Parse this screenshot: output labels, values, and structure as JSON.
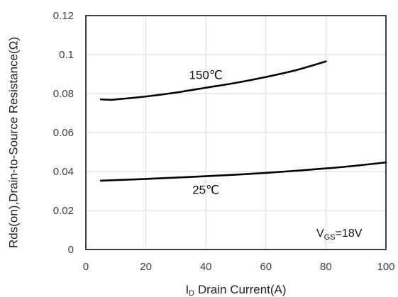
{
  "chart_data": {
    "type": "line",
    "title": "",
    "xlabel": "I",
    "xlabel_sub": "D",
    "xlabel_rest": " Drain Current(A)",
    "ylabel": "Rds(on),Drain-to-Source Resistance(Ω)",
    "xlim": [
      0,
      100
    ],
    "ylim": [
      0,
      0.12
    ],
    "x_ticks": [
      0,
      20,
      40,
      60,
      80,
      100
    ],
    "x_tick_labels": [
      "0",
      "20",
      "40",
      "60",
      "80",
      "100"
    ],
    "y_ticks": [
      0,
      0.02,
      0.04,
      0.06,
      0.08,
      0.1,
      0.12
    ],
    "y_tick_labels": [
      "0",
      "0.02",
      "0.04",
      "0.06",
      "0.08",
      "0.1",
      "0.12"
    ],
    "grid": true,
    "legend": "none",
    "annotation": {
      "main": "V",
      "sub": "GS",
      "rest": "=18V"
    },
    "series": [
      {
        "name": "150℃",
        "color": "#000000",
        "x": [
          5,
          8,
          10,
          20,
          30,
          40,
          50,
          60,
          70,
          80
        ],
        "y": [
          0.077,
          0.0768,
          0.077,
          0.0785,
          0.0805,
          0.083,
          0.0855,
          0.0885,
          0.092,
          0.0965
        ]
      },
      {
        "name": "25℃",
        "color": "#000000",
        "x": [
          5,
          10,
          20,
          30,
          40,
          50,
          60,
          70,
          80,
          90,
          100
        ],
        "y": [
          0.0353,
          0.0356,
          0.0362,
          0.0369,
          0.0376,
          0.0384,
          0.0393,
          0.0404,
          0.0416,
          0.043,
          0.0447
        ]
      }
    ]
  }
}
